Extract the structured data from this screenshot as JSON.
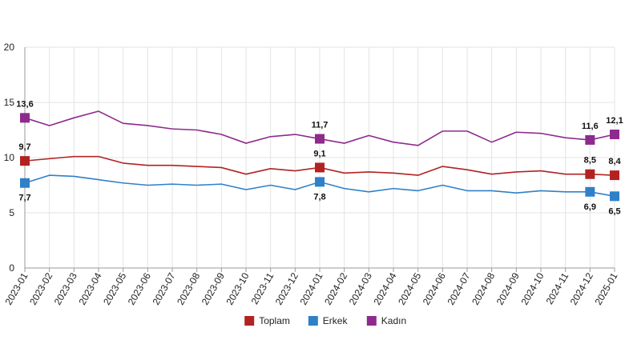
{
  "chart_data": {
    "type": "line",
    "title": "",
    "xlabel": "",
    "ylabel": "",
    "ylim": [
      0,
      20
    ],
    "yticks": [
      0,
      5,
      10,
      15,
      20
    ],
    "grid": true,
    "legend_position": "bottom-center",
    "categories": [
      "2023-01",
      "2023-02",
      "2023-03",
      "2023-04",
      "2023-05",
      "2023-06",
      "2023-07",
      "2023-08",
      "2023-09",
      "2023-10",
      "2023-11",
      "2023-12",
      "2024-01",
      "2024-02",
      "2024-03",
      "2024-04",
      "2024-05",
      "2024-06",
      "2024-07",
      "2024-08",
      "2024-09",
      "2024-10",
      "2024-11",
      "2024-12",
      "2025-01"
    ],
    "series": [
      {
        "name": "Toplam",
        "color": "#b22222",
        "values": [
          9.7,
          9.9,
          10.1,
          10.1,
          9.5,
          9.3,
          9.3,
          9.2,
          9.1,
          8.5,
          9.0,
          8.8,
          9.1,
          8.6,
          8.7,
          8.6,
          8.4,
          9.2,
          8.9,
          8.5,
          8.7,
          8.8,
          8.5,
          8.5,
          8.4
        ],
        "marked": [
          {
            "index": 0,
            "label": "9,7",
            "pos": "above"
          },
          {
            "index": 12,
            "label": "9,1",
            "pos": "above"
          },
          {
            "index": 23,
            "label": "8,5",
            "pos": "above"
          },
          {
            "index": 24,
            "label": "8,4",
            "pos": "above"
          }
        ]
      },
      {
        "name": "Erkek",
        "color": "#2f80c8",
        "values": [
          7.7,
          8.4,
          8.3,
          8.0,
          7.7,
          7.5,
          7.6,
          7.5,
          7.6,
          7.1,
          7.5,
          7.1,
          7.8,
          7.2,
          6.9,
          7.2,
          7.0,
          7.5,
          7.0,
          7.0,
          6.8,
          7.0,
          6.9,
          6.9,
          6.5
        ],
        "marked": [
          {
            "index": 0,
            "label": "7,7",
            "pos": "below"
          },
          {
            "index": 12,
            "label": "7,8",
            "pos": "below"
          },
          {
            "index": 23,
            "label": "6,9",
            "pos": "below"
          },
          {
            "index": 24,
            "label": "6,5",
            "pos": "below"
          }
        ]
      },
      {
        "name": "Kadın",
        "color": "#8e2a8e",
        "values": [
          13.6,
          12.9,
          13.6,
          14.2,
          13.1,
          12.9,
          12.6,
          12.5,
          12.1,
          11.3,
          11.9,
          12.1,
          11.7,
          11.3,
          12.0,
          11.4,
          11.1,
          12.4,
          12.4,
          11.4,
          12.3,
          12.2,
          11.8,
          11.6,
          12.1
        ],
        "marked": [
          {
            "index": 0,
            "label": "13,6",
            "pos": "above"
          },
          {
            "index": 12,
            "label": "11,7",
            "pos": "above"
          },
          {
            "index": 23,
            "label": "11,6",
            "pos": "above"
          },
          {
            "index": 24,
            "label": "12,1",
            "pos": "above"
          }
        ]
      }
    ]
  }
}
